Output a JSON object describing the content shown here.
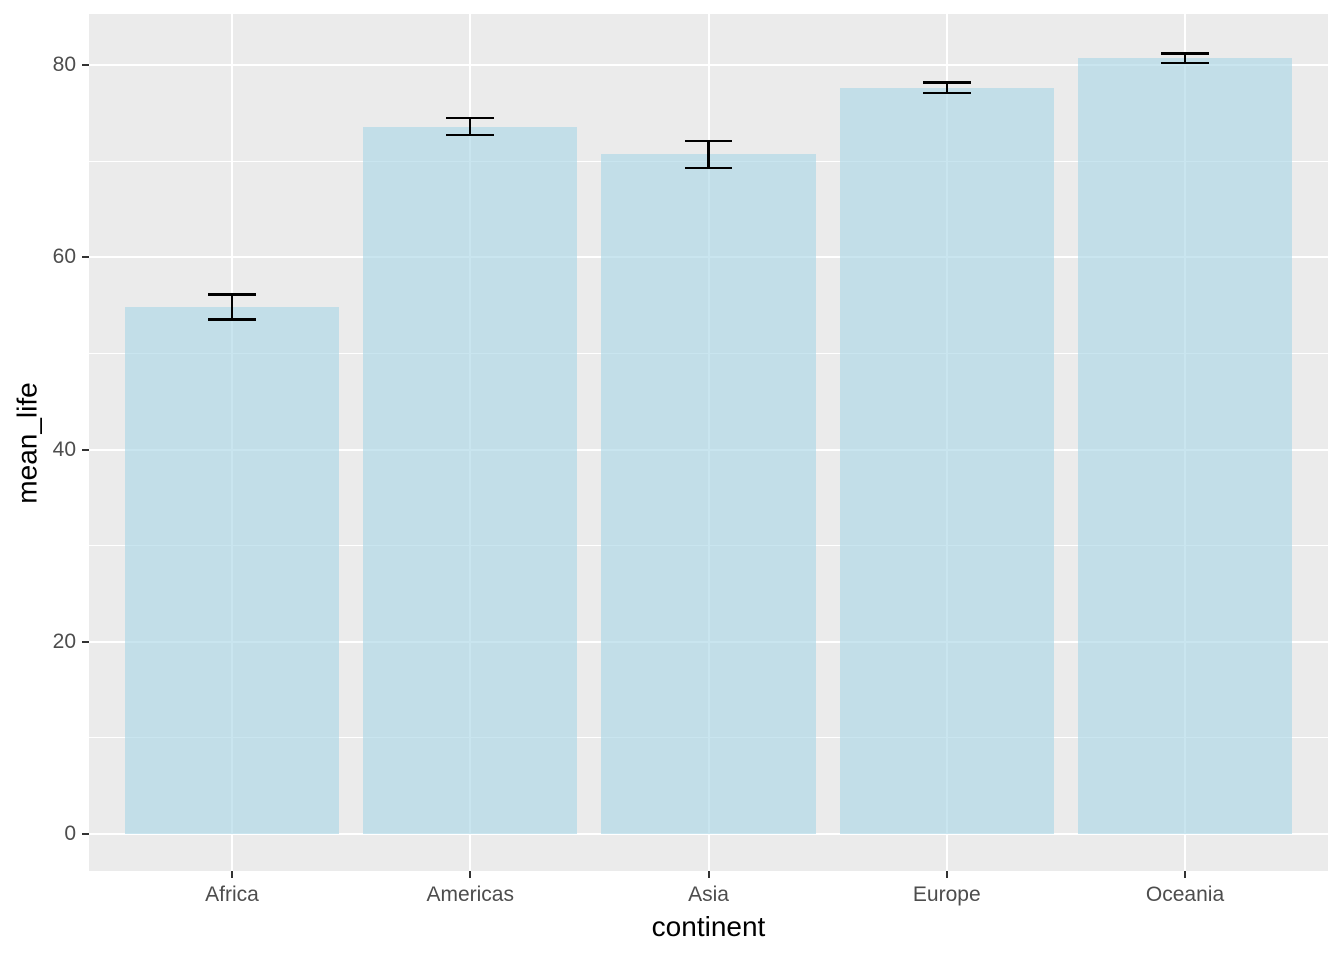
{
  "chart_data": {
    "type": "bar",
    "title": "",
    "xlabel": "continent",
    "ylabel": "mean_life",
    "categories": [
      "Africa",
      "Americas",
      "Asia",
      "Europe",
      "Oceania"
    ],
    "values": [
      54.8,
      73.6,
      70.7,
      77.6,
      80.7
    ],
    "error_ymin": [
      53.5,
      72.7,
      69.3,
      77.1,
      80.2
    ],
    "error_ymax": [
      56.1,
      74.5,
      72.1,
      78.2,
      81.2
    ],
    "y_ticks": [
      0,
      20,
      40,
      60,
      80
    ],
    "ylim": [
      0,
      85.4
    ],
    "grid": "white major and minor horizontal gridlines, white major vertical gridlines at category centers",
    "legend": false,
    "bar_width_ratio": 0.9,
    "errorbar_cap_width_ratio": 0.2,
    "colors": {
      "panel_background": "#EBEBEB",
      "gridline": "#FFFFFF",
      "bar_fill": "#ADD8E6",
      "bar_fill_alpha": 0.66,
      "error_bar": "#000000",
      "tick_mark": "#333333",
      "tick_label": "#4D4D4D",
      "axis_title": "#000000"
    }
  }
}
